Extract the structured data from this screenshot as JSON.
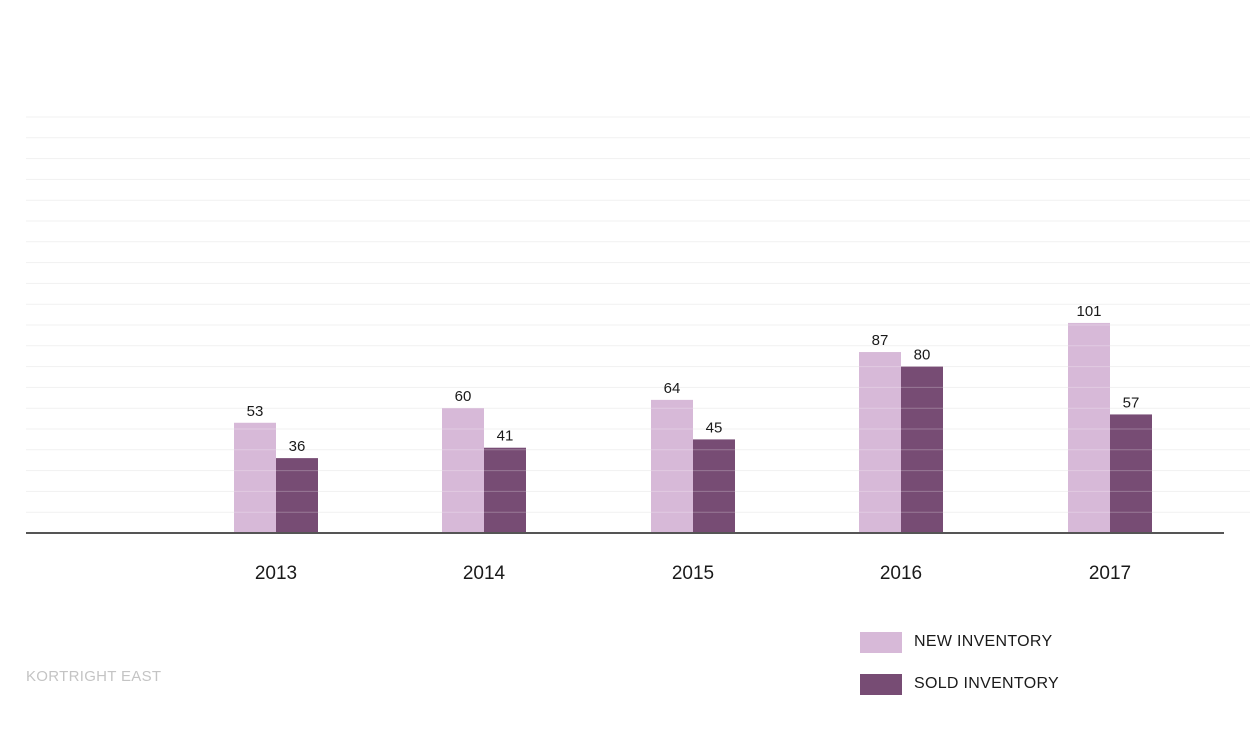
{
  "chart_data": {
    "type": "bar",
    "categories": [
      "2013",
      "2014",
      "2015",
      "2016",
      "2017"
    ],
    "series": [
      {
        "name": "NEW INVENTORY",
        "values": [
          53,
          60,
          64,
          87,
          101
        ],
        "color": "#d7b9d8"
      },
      {
        "name": "SOLD INVENTORY",
        "values": [
          36,
          41,
          45,
          80,
          57
        ],
        "color": "#774c74"
      }
    ],
    "ylim": [
      0,
      200
    ],
    "grid": true,
    "legend": "bottom-right"
  },
  "footer": {
    "text": "KORTRIGHT EAST"
  },
  "colors": {
    "axis": "#555555",
    "grid": "#f1f1f1",
    "label": "#1a1a1a",
    "footer": "#c4c4c4"
  }
}
